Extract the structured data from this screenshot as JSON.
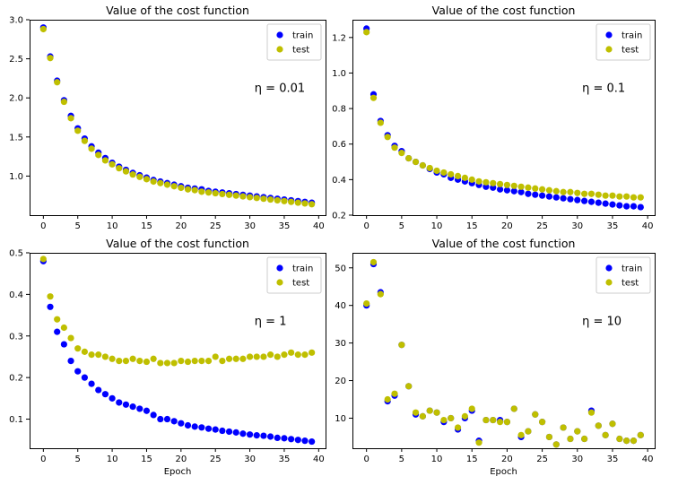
{
  "colors": {
    "train": "#0000ff",
    "test": "#bfbf00"
  },
  "chart_data": [
    {
      "type": "scatter",
      "title": "Value of the cost function",
      "annotation": "η = 0.01",
      "xlabel": "",
      "xlim": [
        -2,
        41
      ],
      "ylim": [
        0.5,
        3.0
      ],
      "xticks": [
        0,
        5,
        10,
        15,
        20,
        25,
        30,
        35,
        40
      ],
      "yticks": [
        1.0,
        1.5,
        2.0,
        2.5,
        3.0
      ],
      "legend": "top-right",
      "series": [
        {
          "name": "train",
          "values": [
            2.9,
            2.53,
            2.22,
            1.97,
            1.77,
            1.61,
            1.48,
            1.38,
            1.3,
            1.23,
            1.17,
            1.12,
            1.08,
            1.04,
            1.01,
            0.98,
            0.95,
            0.93,
            0.91,
            0.89,
            0.87,
            0.85,
            0.84,
            0.83,
            0.81,
            0.8,
            0.79,
            0.78,
            0.77,
            0.76,
            0.75,
            0.74,
            0.73,
            0.72,
            0.71,
            0.7,
            0.69,
            0.68,
            0.67,
            0.66
          ]
        },
        {
          "name": "test",
          "values": [
            2.88,
            2.51,
            2.2,
            1.95,
            1.74,
            1.58,
            1.45,
            1.35,
            1.27,
            1.2,
            1.15,
            1.1,
            1.06,
            1.02,
            0.99,
            0.96,
            0.93,
            0.91,
            0.89,
            0.87,
            0.85,
            0.83,
            0.82,
            0.8,
            0.79,
            0.78,
            0.77,
            0.76,
            0.75,
            0.74,
            0.73,
            0.72,
            0.71,
            0.7,
            0.69,
            0.68,
            0.67,
            0.66,
            0.65,
            0.64
          ]
        }
      ]
    },
    {
      "type": "scatter",
      "title": "Value of the cost function",
      "annotation": "η = 0.1",
      "xlabel": "",
      "xlim": [
        -2,
        41
      ],
      "ylim": [
        0.2,
        1.3
      ],
      "xticks": [
        0,
        5,
        10,
        15,
        20,
        25,
        30,
        35,
        40
      ],
      "yticks": [
        0.2,
        0.4,
        0.6,
        0.8,
        1.0,
        1.2
      ],
      "legend": "top-right",
      "series": [
        {
          "name": "train",
          "values": [
            1.25,
            0.88,
            0.73,
            0.65,
            0.59,
            0.56,
            0.52,
            0.5,
            0.48,
            0.46,
            0.44,
            0.43,
            0.41,
            0.4,
            0.39,
            0.38,
            0.37,
            0.36,
            0.355,
            0.345,
            0.34,
            0.335,
            0.33,
            0.32,
            0.315,
            0.31,
            0.305,
            0.3,
            0.295,
            0.29,
            0.285,
            0.28,
            0.275,
            0.27,
            0.265,
            0.26,
            0.255,
            0.25,
            0.25,
            0.245
          ]
        },
        {
          "name": "test",
          "values": [
            1.23,
            0.86,
            0.72,
            0.64,
            0.58,
            0.55,
            0.52,
            0.5,
            0.48,
            0.465,
            0.45,
            0.44,
            0.43,
            0.42,
            0.41,
            0.4,
            0.39,
            0.385,
            0.38,
            0.375,
            0.37,
            0.365,
            0.36,
            0.355,
            0.35,
            0.345,
            0.34,
            0.335,
            0.33,
            0.33,
            0.325,
            0.32,
            0.32,
            0.315,
            0.31,
            0.31,
            0.305,
            0.305,
            0.3,
            0.3
          ]
        }
      ]
    },
    {
      "type": "scatter",
      "title": "Value of the cost function",
      "annotation": "η = 1",
      "xlabel": "Epoch",
      "xlim": [
        -2,
        41
      ],
      "ylim": [
        0.03,
        0.5
      ],
      "xticks": [
        0,
        5,
        10,
        15,
        20,
        25,
        30,
        35,
        40
      ],
      "yticks": [
        0.1,
        0.2,
        0.3,
        0.4,
        0.5
      ],
      "legend": "top-right",
      "series": [
        {
          "name": "train",
          "values": [
            0.48,
            0.37,
            0.31,
            0.28,
            0.24,
            0.215,
            0.2,
            0.185,
            0.17,
            0.16,
            0.15,
            0.14,
            0.135,
            0.13,
            0.125,
            0.12,
            0.11,
            0.1,
            0.1,
            0.095,
            0.09,
            0.085,
            0.082,
            0.08,
            0.077,
            0.075,
            0.072,
            0.07,
            0.068,
            0.065,
            0.063,
            0.061,
            0.06,
            0.058,
            0.055,
            0.054,
            0.052,
            0.05,
            0.048,
            0.046
          ]
        },
        {
          "name": "test",
          "values": [
            0.485,
            0.395,
            0.34,
            0.32,
            0.295,
            0.27,
            0.262,
            0.255,
            0.255,
            0.25,
            0.245,
            0.24,
            0.24,
            0.245,
            0.24,
            0.238,
            0.245,
            0.235,
            0.235,
            0.235,
            0.24,
            0.238,
            0.24,
            0.24,
            0.24,
            0.25,
            0.24,
            0.245,
            0.245,
            0.245,
            0.25,
            0.25,
            0.25,
            0.255,
            0.25,
            0.255,
            0.26,
            0.255,
            0.255,
            0.26
          ]
        }
      ]
    },
    {
      "type": "scatter",
      "title": "Value of the cost function",
      "annotation": "η = 10",
      "xlabel": "Epoch",
      "xlim": [
        -2,
        41
      ],
      "ylim": [
        2,
        54
      ],
      "xticks": [
        0,
        5,
        10,
        15,
        20,
        25,
        30,
        35,
        40
      ],
      "yticks": [
        10,
        20,
        30,
        40,
        50
      ],
      "legend": "top-right",
      "series": [
        {
          "name": "train",
          "values": [
            40,
            51,
            43.5,
            14.5,
            16,
            29.5,
            18.5,
            11,
            10.5,
            12,
            11.5,
            9,
            10,
            7,
            10,
            12,
            4,
            9.5,
            9.5,
            9.5,
            9,
            12.5,
            5,
            6.5,
            11,
            9,
            5,
            3,
            7.5,
            4.5,
            6.5,
            4.5,
            12,
            8,
            5.5,
            8.5,
            4.5,
            4,
            4,
            5.5
          ]
        },
        {
          "name": "test",
          "values": [
            40.5,
            51.5,
            43,
            15,
            16.5,
            29.5,
            18.5,
            11.5,
            10.5,
            12,
            11.5,
            9.5,
            10,
            7.5,
            10.5,
            12.5,
            3.5,
            9.5,
            9.5,
            9,
            9,
            12.5,
            5.5,
            6.5,
            11,
            9,
            5,
            3,
            7.5,
            4.5,
            6.5,
            4.5,
            11.5,
            8,
            5.5,
            8.5,
            4.5,
            4,
            4,
            5.5
          ]
        }
      ]
    }
  ]
}
